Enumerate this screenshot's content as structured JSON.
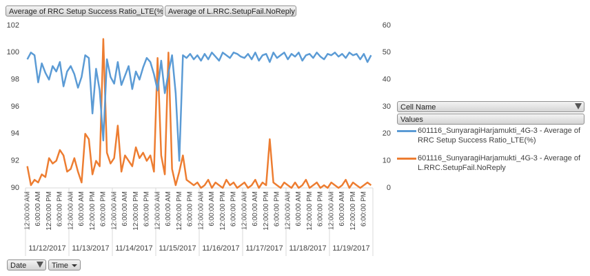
{
  "chart_data": {
    "type": "line",
    "field_buttons": {
      "values": [
        "Average of RRC Setup Success Ratio_LTE(%)",
        "Average of L.RRC.SetupFail.NoReply"
      ],
      "legend": [
        "Cell Name",
        "Values"
      ],
      "axis": [
        "Date",
        "Time"
      ]
    },
    "dates": [
      "11/12/2017",
      "11/13/2017",
      "11/14/2017",
      "11/15/2017",
      "11/16/2017",
      "11/17/2017",
      "11/18/2017",
      "11/19/2017"
    ],
    "categories": [
      "12:00:00 AM",
      null,
      null,
      "6:00:00 AM",
      null,
      null,
      "12:00:00 PM",
      null,
      null,
      "6:00:00 PM",
      null,
      null,
      "12:00:00 AM",
      null,
      null,
      "6:00:00 AM",
      null,
      null,
      "12:00:00 PM",
      null,
      null,
      "6:00:00 PM",
      null,
      null,
      "12:00:00 AM",
      null,
      null,
      "6:00:00 AM",
      null,
      null,
      "12:00:00 PM",
      null,
      null,
      "6:00:00 PM",
      null,
      null,
      "12:00:00 AM",
      null,
      null,
      "6:00:00 AM",
      null,
      null,
      "12:00:00 PM",
      null,
      null,
      "6:00:00 PM",
      null,
      null,
      "12:00:00 AM",
      null,
      null,
      "6:00:00 AM",
      null,
      null,
      "12:00:00 PM",
      null,
      null,
      "6:00:00 PM",
      null,
      null,
      "12:00:00 AM",
      null,
      null,
      "6:00:00 AM",
      null,
      null,
      "12:00:00 PM",
      null,
      null,
      "6:00:00 PM",
      null,
      null,
      "12:00:00 AM",
      null,
      null,
      "6:00:00 AM",
      null,
      null,
      "12:00:00 PM",
      null,
      null,
      "6:00:00 PM",
      null,
      null,
      "12:00:00 AM",
      null,
      null,
      "6:00:00 AM",
      null,
      null,
      "12:00:00 PM",
      null,
      null,
      "6:00:00 PM",
      null,
      null
    ],
    "series": [
      {
        "name": "601116_SunyaragiHarjamukti_4G-3 - Average of RRC Setup Success Ratio_LTE(%)",
        "color": "#5b9bd5",
        "axis": "y",
        "values": [
          99.5,
          100,
          99.8,
          97.8,
          99.2,
          98.5,
          98,
          99,
          98.6,
          99.3,
          97.5,
          98.6,
          99,
          98.4,
          97.4,
          98.2,
          99.8,
          99.6,
          95.5,
          98.8,
          97.2,
          93.5,
          99.5,
          98.2,
          97.7,
          99.3,
          97.6,
          98.3,
          99,
          97.3,
          98.6,
          98,
          98.9,
          99.6,
          99.3,
          98.4,
          97.2,
          99.4,
          97,
          98.5,
          99.8,
          97,
          92,
          99.8,
          99.6,
          99.9,
          99.5,
          99.8,
          99.4,
          99.9,
          99.5,
          100,
          99.7,
          99.4,
          100,
          99.8,
          99.6,
          100,
          99.9,
          99.7,
          99.6,
          99.9,
          99.5,
          100,
          99.4,
          99.8,
          99.9,
          99.3,
          100,
          99.6,
          99.8,
          100,
          99.5,
          99.9,
          99.7,
          100,
          99.4,
          99.8,
          99.9,
          99.6,
          100,
          99.7,
          99.5,
          99.9,
          99.8,
          100,
          99.7,
          99.9,
          99.6,
          100,
          99.8,
          99.9,
          99.5,
          99.9,
          99.3,
          99.8
        ]
      },
      {
        "name": "601116_SunyaragiHarjamukti_4G-3 - Average of L.RRC.SetupFail.NoReply",
        "color": "#ed7d31",
        "axis": "y2",
        "values": [
          8,
          1,
          3,
          2,
          5,
          4,
          11,
          9,
          10,
          14,
          12,
          6,
          7,
          11,
          6,
          2,
          20,
          18,
          5,
          10,
          8,
          55,
          13,
          9,
          11,
          23,
          6,
          12,
          10,
          8,
          15,
          11,
          13,
          10,
          12,
          6,
          48,
          12,
          5,
          50,
          7,
          1,
          6,
          12,
          3,
          2,
          1,
          2,
          0,
          1,
          3,
          0,
          2,
          1,
          0,
          3,
          1,
          2,
          0,
          1,
          2,
          0,
          1,
          3,
          0,
          2,
          1,
          18,
          2,
          1,
          0,
          2,
          1,
          0,
          2,
          0,
          1,
          3,
          0,
          1,
          2,
          0,
          1,
          0,
          2,
          1,
          0,
          1,
          3,
          0,
          2,
          1,
          0,
          1,
          2,
          1
        ]
      }
    ],
    "ylim": [
      90,
      102
    ],
    "yticks": [
      90,
      92,
      94,
      96,
      98,
      100,
      102
    ],
    "y2lim": [
      0,
      60
    ],
    "y2ticks": [
      0,
      10,
      20,
      30,
      40,
      50,
      60
    ]
  }
}
